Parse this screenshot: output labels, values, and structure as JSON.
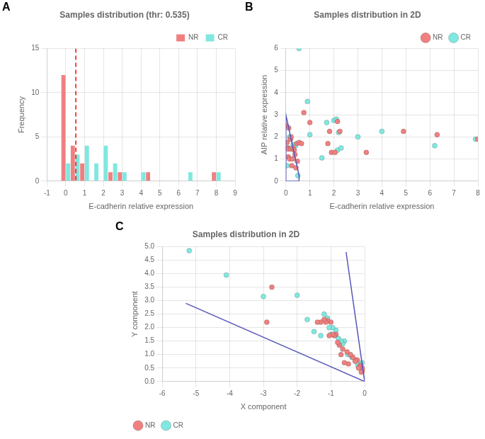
{
  "chart_data": [
    {
      "type": "bar",
      "title": "Samples distribution (thr: 0.535)",
      "x_label": "E-cadherin relative expression",
      "y_label": "Frequency",
      "x": [
        0.0,
        0.5,
        1.0,
        1.5,
        2.0,
        2.5,
        3.0,
        3.5,
        4.0,
        4.5,
        5.0,
        6.5,
        8.0
      ],
      "series": [
        {
          "name": "NR",
          "color": "#F08080",
          "values": [
            12,
            4,
            2,
            0,
            0,
            1,
            1,
            0,
            0,
            1,
            0,
            0,
            1
          ]
        },
        {
          "name": "CR",
          "color": "#80E8E0",
          "values": [
            2,
            3,
            4,
            2,
            4,
            2,
            1,
            0,
            1,
            0,
            0,
            1,
            1
          ]
        }
      ],
      "xlim": [
        -1,
        9
      ],
      "xticks": [
        -1,
        0,
        1,
        2,
        3,
        4,
        5,
        6,
        7,
        8,
        9
      ],
      "ylim": [
        0,
        15
      ],
      "yticks": [
        0,
        5,
        10,
        15
      ],
      "grid": true,
      "legend": "upper right",
      "annotations": [
        {
          "text": "A"
        },
        {
          "type": "vline",
          "x": 0.535,
          "color": "red",
          "line_style": "dashed"
        }
      ]
    },
    {
      "type": "scatter",
      "title": "Samples distribution in 2D",
      "x_label": "E-cadherin relative expression",
      "y_label": "AIP relative expression",
      "series": [
        {
          "name": "NR",
          "color": "#F08080",
          "marker": "circle",
          "x": [
            0.02,
            0.05,
            0.07,
            0.09,
            0.1,
            0.12,
            0.15,
            0.18,
            0.2,
            0.22,
            0.25,
            0.28,
            0.3,
            0.35,
            0.38,
            0.42,
            0.45,
            0.48,
            0.55,
            0.65,
            0.75,
            1.0,
            1.75,
            1.82,
            1.9,
            2.05,
            2.15,
            2.25,
            3.35,
            4.9,
            6.3,
            8.0
          ],
          "values": [
            2.5,
            1.75,
            1.5,
            1.45,
            1.1,
            2.4,
            1.0,
            1.9,
            1.45,
            2.0,
            0.7,
            1.0,
            1.5,
            1.4,
            1.2,
            0.6,
            1.7,
            0.9,
            1.75,
            1.7,
            3.1,
            2.65,
            1.7,
            2.25,
            1.3,
            1.3,
            2.7,
            2.25,
            1.3,
            2.25,
            2.1,
            1.9
          ]
        },
        {
          "name": "CR",
          "color": "#80E8E0",
          "marker": "circle",
          "x": [
            0.05,
            0.1,
            0.15,
            0.2,
            0.3,
            0.4,
            0.5,
            0.55,
            0.9,
            1.0,
            1.5,
            1.7,
            2.0,
            2.1,
            2.15,
            2.2,
            2.3,
            3.0,
            4.0,
            6.2,
            7.9
          ],
          "values": [
            0.7,
            1.5,
            2.0,
            1.9,
            1.65,
            1.6,
            0.25,
            6.0,
            3.6,
            2.1,
            1.05,
            2.65,
            2.75,
            2.8,
            1.4,
            2.2,
            1.5,
            2.0,
            2.25,
            1.6,
            1.9
          ]
        },
        {
          "type": "line",
          "color": "#5555BB",
          "x": [
            0.0,
            0.55,
            0.55,
            0.0,
            0.0
          ],
          "values": [
            0.0,
            0.0,
            0.25,
            3.0,
            0.0
          ]
        }
      ],
      "xlim": [
        0,
        8
      ],
      "xticks": [
        0,
        1,
        2,
        3,
        4,
        5,
        6,
        7,
        8
      ],
      "ylim": [
        0,
        6
      ],
      "yticks": [
        0,
        1,
        2,
        3,
        4,
        5,
        6
      ],
      "grid": true,
      "legend": "upper right",
      "annotations": [
        {
          "text": "B"
        }
      ]
    },
    {
      "type": "scatter",
      "title": "Samples distribution in 2D",
      "x_label": "X component",
      "y_label": "Y component",
      "series": [
        {
          "name": "NR",
          "color": "#F08080",
          "marker": "circle",
          "x": [
            -0.05,
            -0.07,
            -0.1,
            -0.12,
            -0.15,
            -0.18,
            -0.22,
            -0.28,
            -0.35,
            -0.42,
            -0.48,
            -0.52,
            -0.6,
            -0.65,
            -0.7,
            -0.75,
            -0.8,
            -0.85,
            -0.9,
            -0.95,
            -1.0,
            -1.05,
            -1.1,
            -1.15,
            -1.2,
            -1.3,
            -1.4,
            -2.75,
            -2.9
          ],
          "values": [
            0.4,
            0.5,
            0.35,
            0.6,
            0.55,
            0.5,
            0.8,
            0.75,
            0.9,
            1.0,
            0.65,
            1.1,
            0.7,
            1.2,
            1.0,
            1.35,
            1.45,
            1.75,
            1.7,
            1.75,
            2.2,
            1.7,
            2.25,
            2.2,
            2.3,
            2.2,
            2.2,
            3.5,
            2.2
          ]
        },
        {
          "name": "CR",
          "color": "#80E8E0",
          "marker": "circle",
          "x": [
            -0.08,
            -0.12,
            -0.2,
            -0.28,
            -0.38,
            -0.5,
            -0.6,
            -0.65,
            -0.7,
            -0.78,
            -0.85,
            -0.95,
            -1.0,
            -1.05,
            -1.1,
            -1.2,
            -1.3,
            -1.5,
            -1.7,
            -2.0,
            -3.0,
            -4.1,
            -5.2
          ],
          "values": [
            0.7,
            0.65,
            0.6,
            0.8,
            0.9,
            1.0,
            1.5,
            1.4,
            1.5,
            1.6,
            1.9,
            2.0,
            1.75,
            2.0,
            2.35,
            2.5,
            1.7,
            1.85,
            2.3,
            3.2,
            3.15,
            3.95,
            4.85
          ]
        },
        {
          "type": "line",
          "color": "#5555BB",
          "x": [
            -5.3,
            0.0
          ],
          "values": [
            2.9,
            0.0
          ]
        },
        {
          "type": "line",
          "color": "#5555BB",
          "x": [
            -0.55,
            0.0
          ],
          "values": [
            4.8,
            0.0
          ]
        }
      ],
      "xlim": [
        -6,
        0
      ],
      "xticks": [
        -6,
        -5,
        -4,
        -3,
        -2,
        -1,
        0
      ],
      "ylim": [
        0,
        5
      ],
      "yticks": [
        {
          "value": 0,
          "label": "0.0"
        },
        0.5,
        {
          "value": 1,
          "label": "1.0"
        },
        1.5,
        {
          "value": 2,
          "label": "2.0"
        },
        2.5,
        {
          "value": 3,
          "label": "3.0"
        },
        3.5,
        {
          "value": 4,
          "label": "4.0"
        },
        4.5,
        {
          "value": 5,
          "label": "5.0"
        }
      ],
      "grid": true,
      "legend": "lower left",
      "annotations": [
        {
          "text": "C"
        }
      ]
    }
  ]
}
